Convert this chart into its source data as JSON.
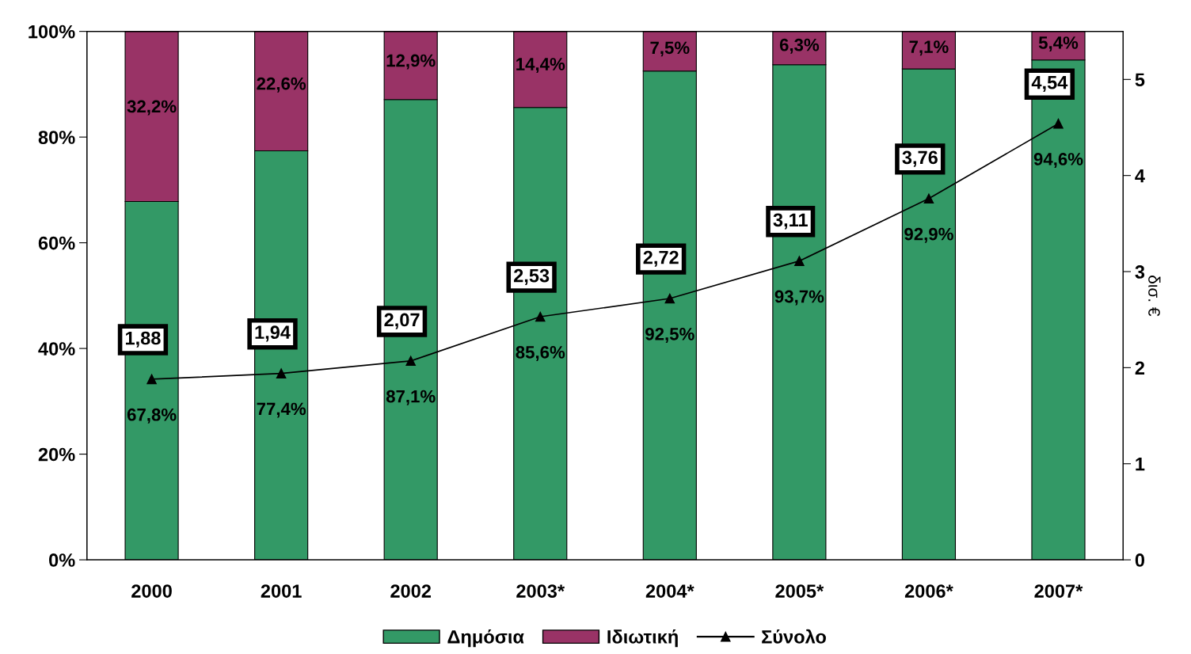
{
  "chart_data": {
    "type": "bar",
    "stacked": true,
    "categories": [
      "2000",
      "2001",
      "2002",
      "2003*",
      "2004*",
      "2005*",
      "2006*",
      "2007*"
    ],
    "series": [
      {
        "name": "Δημόσια",
        "color": "#339966",
        "values": [
          67.8,
          77.4,
          87.1,
          85.6,
          92.5,
          93.7,
          92.9,
          94.6
        ],
        "value_labels": [
          "67,8%",
          "77,4%",
          "87,1%",
          "85,6%",
          "92,5%",
          "93,7%",
          "92,9%",
          "94,6%"
        ]
      },
      {
        "name": "Ιδιωτική",
        "color": "#993366",
        "values": [
          32.2,
          22.6,
          12.9,
          14.4,
          7.5,
          6.3,
          7.1,
          5.4
        ],
        "value_labels": [
          "32,2%",
          "22,6%",
          "12,9%",
          "14,4%",
          "7,5%",
          "6,3%",
          "7,1%",
          "5,4%"
        ]
      },
      {
        "name": "Σύνολο",
        "type": "line",
        "axis": "y2",
        "color": "#000000",
        "marker": "triangle",
        "values": [
          1.88,
          1.94,
          2.07,
          2.53,
          2.72,
          3.11,
          3.76,
          4.54
        ],
        "value_labels": [
          "1,88",
          "1,94",
          "2,07",
          "2,53",
          "2,72",
          "3,11",
          "3,76",
          "4,54"
        ]
      }
    ],
    "ylim": [
      0,
      100
    ],
    "yticks": [
      {
        "value": 0,
        "label": "0%"
      },
      {
        "value": 20,
        "label": "20%"
      },
      {
        "value": 40,
        "label": "40%"
      },
      {
        "value": 60,
        "label": "60%"
      },
      {
        "value": 80,
        "label": "80%"
      },
      {
        "value": 100,
        "label": "100%"
      }
    ],
    "y2lim": [
      0,
      5.5
    ],
    "y2ticks": [
      0,
      1,
      2,
      3,
      4,
      5
    ],
    "y2label": "δισ. €",
    "grid": false,
    "legend": "bottom"
  }
}
